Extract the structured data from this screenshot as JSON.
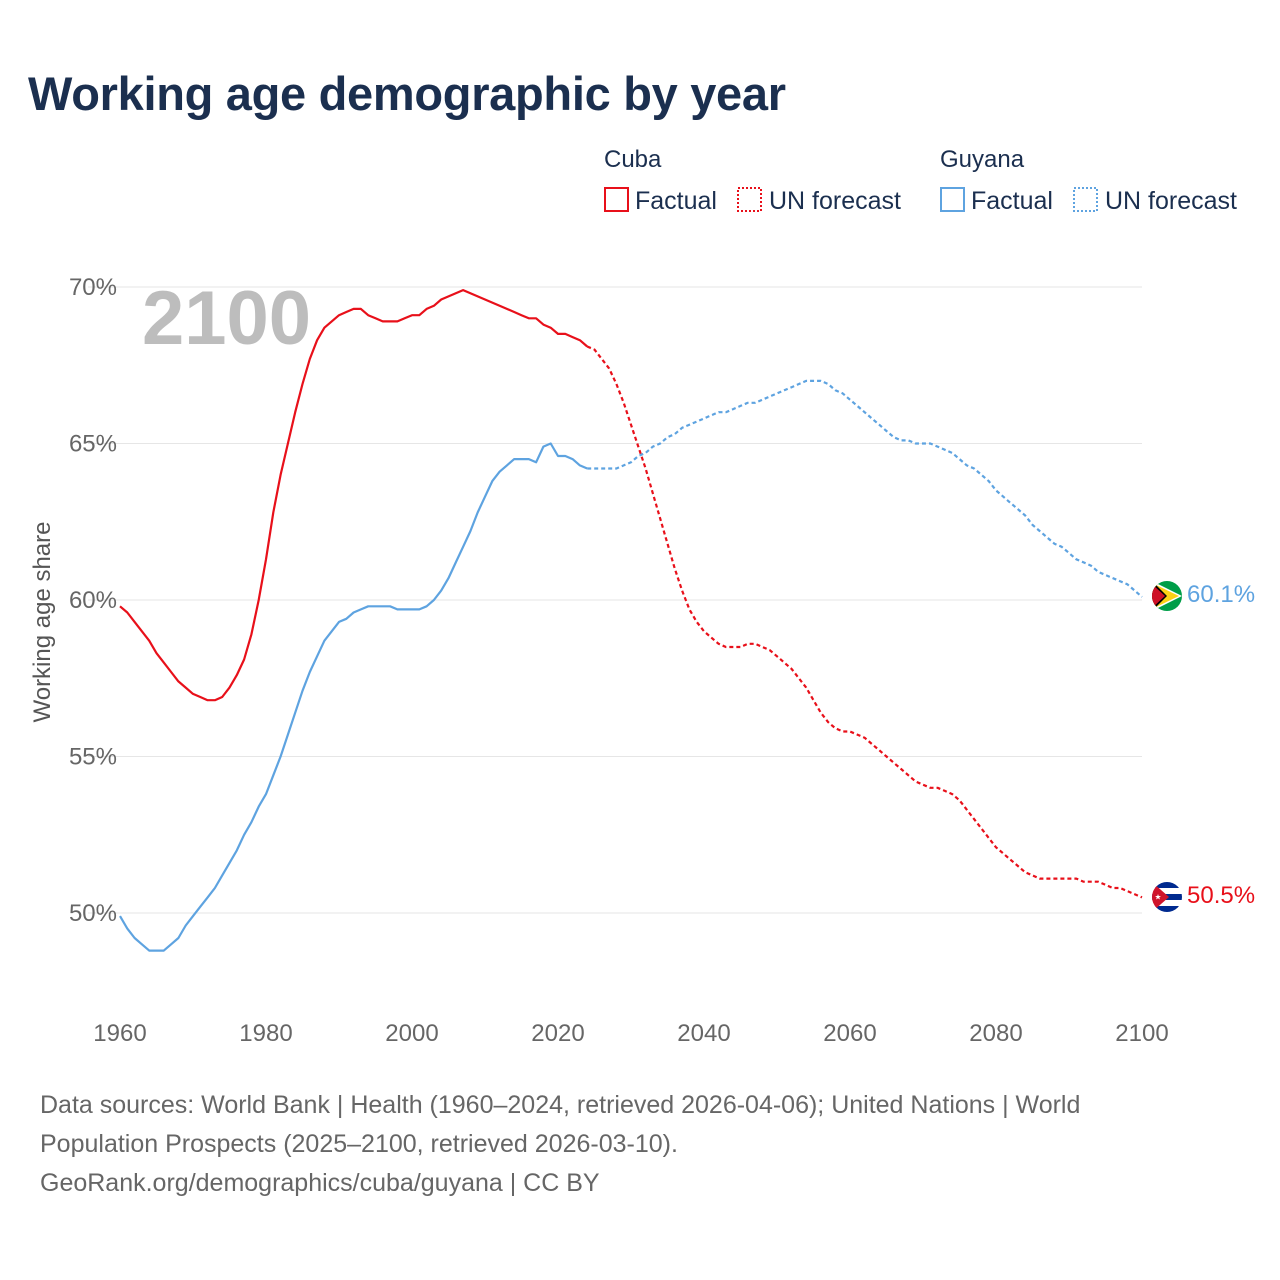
{
  "title": "Working age demographic by year",
  "legend": {
    "groups": [
      {
        "name": "Cuba",
        "factual_label": "Factual",
        "forecast_label": "UN forecast",
        "color": "#e8101a"
      },
      {
        "name": "Guyana",
        "factual_label": "Factual",
        "forecast_label": "UN forecast",
        "color": "#5ea3e0"
      }
    ]
  },
  "year_watermark": "2100",
  "footer": {
    "sources": "Data sources: World Bank | Health (1960–2024, retrieved 2026-04-06); United Nations | World Population Prospects (2025–2100, retrieved 2026-03-10).",
    "credit": "GeoRank.org/demographics/cuba/guyana | CC BY"
  },
  "chart_data": {
    "type": "line",
    "title": "Working age demographic by year",
    "xlabel": "",
    "ylabel": "Working age share",
    "xlim": [
      1960,
      2100
    ],
    "ylim": [
      47.5,
      71.5
    ],
    "x_ticks": [
      1960,
      1980,
      2000,
      2020,
      2040,
      2060,
      2080,
      2100
    ],
    "x_tick_labels": [
      "1960",
      "1980",
      "2000",
      "2020",
      "2040",
      "2060",
      "2080",
      "2100"
    ],
    "y_ticks": [
      50,
      55,
      60,
      65,
      70
    ],
    "y_tick_labels": [
      "50%",
      "55%",
      "60%",
      "65%",
      "70%"
    ],
    "grid": true,
    "factual_end_year": 2024,
    "series": [
      {
        "name": "Cuba",
        "color": "#e8101a",
        "end_label": "50.5%",
        "points": [
          [
            1960,
            59.8
          ],
          [
            1961,
            59.6
          ],
          [
            1962,
            59.3
          ],
          [
            1963,
            59.0
          ],
          [
            1964,
            58.7
          ],
          [
            1965,
            58.3
          ],
          [
            1966,
            58.0
          ],
          [
            1967,
            57.7
          ],
          [
            1968,
            57.4
          ],
          [
            1969,
            57.2
          ],
          [
            1970,
            57.0
          ],
          [
            1971,
            56.9
          ],
          [
            1972,
            56.8
          ],
          [
            1973,
            56.8
          ],
          [
            1974,
            56.9
          ],
          [
            1975,
            57.2
          ],
          [
            1976,
            57.6
          ],
          [
            1977,
            58.1
          ],
          [
            1978,
            58.9
          ],
          [
            1979,
            60.0
          ],
          [
            1980,
            61.3
          ],
          [
            1981,
            62.8
          ],
          [
            1982,
            64.0
          ],
          [
            1983,
            65.0
          ],
          [
            1984,
            66.0
          ],
          [
            1985,
            66.9
          ],
          [
            1986,
            67.7
          ],
          [
            1987,
            68.3
          ],
          [
            1988,
            68.7
          ],
          [
            1989,
            68.9
          ],
          [
            1990,
            69.1
          ],
          [
            1991,
            69.2
          ],
          [
            1992,
            69.3
          ],
          [
            1993,
            69.3
          ],
          [
            1994,
            69.1
          ],
          [
            1995,
            69.0
          ],
          [
            1996,
            68.9
          ],
          [
            1997,
            68.9
          ],
          [
            1998,
            68.9
          ],
          [
            1999,
            69.0
          ],
          [
            2000,
            69.1
          ],
          [
            2001,
            69.1
          ],
          [
            2002,
            69.3
          ],
          [
            2003,
            69.4
          ],
          [
            2004,
            69.6
          ],
          [
            2005,
            69.7
          ],
          [
            2006,
            69.8
          ],
          [
            2007,
            69.9
          ],
          [
            2008,
            69.8
          ],
          [
            2009,
            69.7
          ],
          [
            2010,
            69.6
          ],
          [
            2011,
            69.5
          ],
          [
            2012,
            69.4
          ],
          [
            2013,
            69.3
          ],
          [
            2014,
            69.2
          ],
          [
            2015,
            69.1
          ],
          [
            2016,
            69.0
          ],
          [
            2017,
            69.0
          ],
          [
            2018,
            68.8
          ],
          [
            2019,
            68.7
          ],
          [
            2020,
            68.5
          ],
          [
            2021,
            68.5
          ],
          [
            2022,
            68.4
          ],
          [
            2023,
            68.3
          ],
          [
            2024,
            68.1
          ],
          [
            2025,
            68.0
          ],
          [
            2026,
            67.7
          ],
          [
            2027,
            67.4
          ],
          [
            2028,
            66.9
          ],
          [
            2029,
            66.3
          ],
          [
            2030,
            65.6
          ],
          [
            2031,
            64.9
          ],
          [
            2032,
            64.2
          ],
          [
            2033,
            63.4
          ],
          [
            2034,
            62.6
          ],
          [
            2035,
            61.8
          ],
          [
            2036,
            61.0
          ],
          [
            2037,
            60.3
          ],
          [
            2038,
            59.7
          ],
          [
            2039,
            59.3
          ],
          [
            2040,
            59.0
          ],
          [
            2041,
            58.8
          ],
          [
            2042,
            58.6
          ],
          [
            2043,
            58.5
          ],
          [
            2044,
            58.5
          ],
          [
            2045,
            58.5
          ],
          [
            2046,
            58.6
          ],
          [
            2047,
            58.6
          ],
          [
            2048,
            58.5
          ],
          [
            2049,
            58.4
          ],
          [
            2050,
            58.2
          ],
          [
            2051,
            58.0
          ],
          [
            2052,
            57.8
          ],
          [
            2053,
            57.5
          ],
          [
            2054,
            57.2
          ],
          [
            2055,
            56.8
          ],
          [
            2056,
            56.4
          ],
          [
            2057,
            56.1
          ],
          [
            2058,
            55.9
          ],
          [
            2059,
            55.8
          ],
          [
            2060,
            55.8
          ],
          [
            2061,
            55.7
          ],
          [
            2062,
            55.6
          ],
          [
            2063,
            55.4
          ],
          [
            2064,
            55.2
          ],
          [
            2065,
            55.0
          ],
          [
            2066,
            54.8
          ],
          [
            2067,
            54.6
          ],
          [
            2068,
            54.4
          ],
          [
            2069,
            54.2
          ],
          [
            2070,
            54.1
          ],
          [
            2071,
            54.0
          ],
          [
            2072,
            54.0
          ],
          [
            2073,
            53.9
          ],
          [
            2074,
            53.8
          ],
          [
            2075,
            53.6
          ],
          [
            2076,
            53.3
          ],
          [
            2077,
            53.0
          ],
          [
            2078,
            52.7
          ],
          [
            2079,
            52.4
          ],
          [
            2080,
            52.1
          ],
          [
            2081,
            51.9
          ],
          [
            2082,
            51.7
          ],
          [
            2083,
            51.5
          ],
          [
            2084,
            51.3
          ],
          [
            2085,
            51.2
          ],
          [
            2086,
            51.1
          ],
          [
            2087,
            51.1
          ],
          [
            2088,
            51.1
          ],
          [
            2089,
            51.1
          ],
          [
            2090,
            51.1
          ],
          [
            2091,
            51.1
          ],
          [
            2092,
            51.0
          ],
          [
            2093,
            51.0
          ],
          [
            2094,
            51.0
          ],
          [
            2095,
            50.9
          ],
          [
            2096,
            50.8
          ],
          [
            2097,
            50.8
          ],
          [
            2098,
            50.7
          ],
          [
            2099,
            50.6
          ],
          [
            2100,
            50.5
          ]
        ]
      },
      {
        "name": "Guyana",
        "color": "#5ea3e0",
        "end_label": "60.1%",
        "points": [
          [
            1960,
            49.9
          ],
          [
            1961,
            49.5
          ],
          [
            1962,
            49.2
          ],
          [
            1963,
            49.0
          ],
          [
            1964,
            48.8
          ],
          [
            1965,
            48.8
          ],
          [
            1966,
            48.8
          ],
          [
            1967,
            49.0
          ],
          [
            1968,
            49.2
          ],
          [
            1969,
            49.6
          ],
          [
            1970,
            49.9
          ],
          [
            1971,
            50.2
          ],
          [
            1972,
            50.5
          ],
          [
            1973,
            50.8
          ],
          [
            1974,
            51.2
          ],
          [
            1975,
            51.6
          ],
          [
            1976,
            52.0
          ],
          [
            1977,
            52.5
          ],
          [
            1978,
            52.9
          ],
          [
            1979,
            53.4
          ],
          [
            1980,
            53.8
          ],
          [
            1981,
            54.4
          ],
          [
            1982,
            55.0
          ],
          [
            1983,
            55.7
          ],
          [
            1984,
            56.4
          ],
          [
            1985,
            57.1
          ],
          [
            1986,
            57.7
          ],
          [
            1987,
            58.2
          ],
          [
            1988,
            58.7
          ],
          [
            1989,
            59.0
          ],
          [
            1990,
            59.3
          ],
          [
            1991,
            59.4
          ],
          [
            1992,
            59.6
          ],
          [
            1993,
            59.7
          ],
          [
            1994,
            59.8
          ],
          [
            1995,
            59.8
          ],
          [
            1996,
            59.8
          ],
          [
            1997,
            59.8
          ],
          [
            1998,
            59.7
          ],
          [
            1999,
            59.7
          ],
          [
            2000,
            59.7
          ],
          [
            2001,
            59.7
          ],
          [
            2002,
            59.8
          ],
          [
            2003,
            60.0
          ],
          [
            2004,
            60.3
          ],
          [
            2005,
            60.7
          ],
          [
            2006,
            61.2
          ],
          [
            2007,
            61.7
          ],
          [
            2008,
            62.2
          ],
          [
            2009,
            62.8
          ],
          [
            2010,
            63.3
          ],
          [
            2011,
            63.8
          ],
          [
            2012,
            64.1
          ],
          [
            2013,
            64.3
          ],
          [
            2014,
            64.5
          ],
          [
            2015,
            64.5
          ],
          [
            2016,
            64.5
          ],
          [
            2017,
            64.4
          ],
          [
            2018,
            64.9
          ],
          [
            2019,
            65.0
          ],
          [
            2020,
            64.6
          ],
          [
            2021,
            64.6
          ],
          [
            2022,
            64.5
          ],
          [
            2023,
            64.3
          ],
          [
            2024,
            64.2
          ],
          [
            2025,
            64.2
          ],
          [
            2026,
            64.2
          ],
          [
            2027,
            64.2
          ],
          [
            2028,
            64.2
          ],
          [
            2029,
            64.3
          ],
          [
            2030,
            64.4
          ],
          [
            2031,
            64.6
          ],
          [
            2032,
            64.7
          ],
          [
            2033,
            64.9
          ],
          [
            2034,
            65.0
          ],
          [
            2035,
            65.2
          ],
          [
            2036,
            65.3
          ],
          [
            2037,
            65.5
          ],
          [
            2038,
            65.6
          ],
          [
            2039,
            65.7
          ],
          [
            2040,
            65.8
          ],
          [
            2041,
            65.9
          ],
          [
            2042,
            66.0
          ],
          [
            2043,
            66.0
          ],
          [
            2044,
            66.1
          ],
          [
            2045,
            66.2
          ],
          [
            2046,
            66.3
          ],
          [
            2047,
            66.3
          ],
          [
            2048,
            66.4
          ],
          [
            2049,
            66.5
          ],
          [
            2050,
            66.6
          ],
          [
            2051,
            66.7
          ],
          [
            2052,
            66.8
          ],
          [
            2053,
            66.9
          ],
          [
            2054,
            67.0
          ],
          [
            2055,
            67.0
          ],
          [
            2056,
            67.0
          ],
          [
            2057,
            66.9
          ],
          [
            2058,
            66.7
          ],
          [
            2059,
            66.6
          ],
          [
            2060,
            66.4
          ],
          [
            2061,
            66.2
          ],
          [
            2062,
            66.0
          ],
          [
            2063,
            65.8
          ],
          [
            2064,
            65.6
          ],
          [
            2065,
            65.4
          ],
          [
            2066,
            65.2
          ],
          [
            2067,
            65.1
          ],
          [
            2068,
            65.1
          ],
          [
            2069,
            65.0
          ],
          [
            2070,
            65.0
          ],
          [
            2071,
            65.0
          ],
          [
            2072,
            64.9
          ],
          [
            2073,
            64.8
          ],
          [
            2074,
            64.7
          ],
          [
            2075,
            64.5
          ],
          [
            2076,
            64.3
          ],
          [
            2077,
            64.2
          ],
          [
            2078,
            64.0
          ],
          [
            2079,
            63.8
          ],
          [
            2080,
            63.5
          ],
          [
            2081,
            63.3
          ],
          [
            2082,
            63.1
          ],
          [
            2083,
            62.9
          ],
          [
            2084,
            62.7
          ],
          [
            2085,
            62.4
          ],
          [
            2086,
            62.2
          ],
          [
            2087,
            62.0
          ],
          [
            2088,
            61.8
          ],
          [
            2089,
            61.7
          ],
          [
            2090,
            61.5
          ],
          [
            2091,
            61.3
          ],
          [
            2092,
            61.2
          ],
          [
            2093,
            61.1
          ],
          [
            2094,
            60.9
          ],
          [
            2095,
            60.8
          ],
          [
            2096,
            60.7
          ],
          [
            2097,
            60.6
          ],
          [
            2098,
            60.5
          ],
          [
            2099,
            60.3
          ],
          [
            2100,
            60.1
          ]
        ]
      }
    ]
  }
}
